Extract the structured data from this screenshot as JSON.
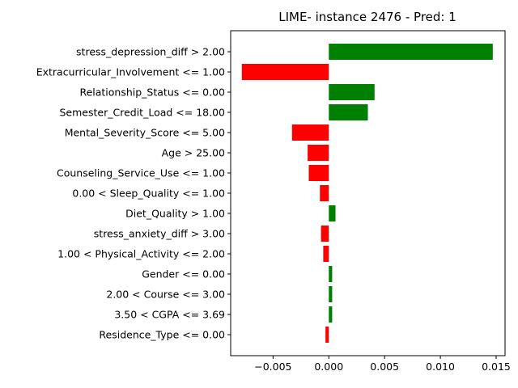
{
  "chart_data": {
    "type": "bar",
    "orientation": "horizontal",
    "title": "LIME- instance 2476 - Pred: 1",
    "xlabel": "",
    "ylabel": "",
    "xlim": [
      -0.0088,
      0.0158
    ],
    "xticks": [
      -0.005,
      0.0,
      0.005,
      0.01,
      0.015
    ],
    "xtick_labels": [
      "−0.005",
      "0.000",
      "0.005",
      "0.010",
      "0.015"
    ],
    "grid": false,
    "legend": "none",
    "colors": {
      "positive": "#008000",
      "negative": "#ff0000"
    },
    "categories": [
      "stress_depression_diff > 2.00",
      "Extracurricular_Involvement <= 1.00",
      "Relationship_Status <= 0.00",
      "Semester_Credit_Load <= 18.00",
      "Mental_Severity_Score <= 5.00",
      "Age > 25.00",
      "Counseling_Service_Use <= 1.00",
      "0.00 < Sleep_Quality <= 1.00",
      "Diet_Quality > 1.00",
      "stress_anxiety_diff > 3.00",
      "1.00 < Physical_Activity <= 2.00",
      "Gender <= 0.00",
      "2.00 < Course <= 3.00",
      "3.50 < CGPA <= 3.69",
      "Residence_Type <= 0.00"
    ],
    "values": [
      0.0147,
      -0.0078,
      0.0041,
      0.0035,
      -0.0033,
      -0.0019,
      -0.0018,
      -0.0008,
      0.0006,
      -0.0007,
      -0.0005,
      0.0003,
      0.0003,
      0.0003,
      -0.0003
    ]
  }
}
